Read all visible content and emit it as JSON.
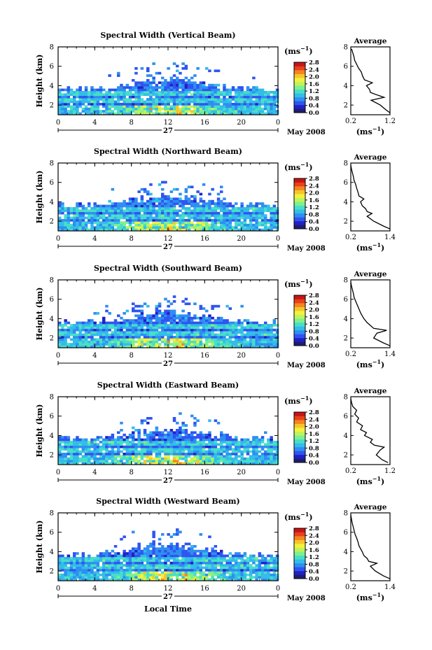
{
  "figure": {
    "bottom_xlabel": "Local Time",
    "ylabel": "Height (km)",
    "date_label": "May 2008",
    "day_label": "27",
    "colorbar_unit": "(ms",
    "colorbar_unit_exp": "−1",
    "colorbar_unit_close": ")",
    "average_title": "Average",
    "average_unit": "(ms",
    "average_unit_exp": "−1",
    "average_unit_close": ")",
    "colormap": [
      "#1e1e6e",
      "#2020c8",
      "#2f55ef",
      "#2f8ef2",
      "#33bde8",
      "#48dfc8",
      "#7ff08e",
      "#bff35c",
      "#f2f23c",
      "#f7c42b",
      "#f4841f",
      "#e8401a",
      "#c81414"
    ]
  },
  "chart_data": [
    {
      "type": "heatmap",
      "title": "Spectral Width (Vertical Beam)",
      "x_ticks": [
        "0",
        "4",
        "8",
        "12",
        "16",
        "20",
        "0"
      ],
      "x_range": [
        0,
        24
      ],
      "y_ticks": [
        "2",
        "4",
        "6",
        "8"
      ],
      "y_range": [
        1,
        8
      ],
      "colorbar_ticks": [
        "0.0",
        "0.4",
        "0.8",
        "1.2",
        "1.6",
        "2.0",
        "2.4",
        "2.8"
      ],
      "colorbar_range": [
        0.0,
        2.8
      ],
      "average": {
        "title": "Average",
        "x_ticks": [
          "0.2",
          "1.2"
        ],
        "x_range": [
          0.2,
          1.2
        ],
        "heights": [
          1.2,
          1.5,
          2.0,
          2.5,
          2.8,
          3.0,
          3.3,
          3.6,
          4.0,
          4.3,
          4.6,
          5.0,
          5.4,
          5.8,
          6.2,
          6.6,
          7.0,
          7.4,
          7.8
        ],
        "values": [
          1.2,
          1.1,
          0.95,
          0.72,
          1.05,
          0.9,
          0.7,
          0.68,
          0.6,
          0.75,
          0.55,
          0.5,
          0.47,
          0.4,
          0.35,
          0.3,
          0.28,
          0.25,
          0.22
        ]
      }
    },
    {
      "type": "heatmap",
      "title": "Spectral Width (Northward Beam)",
      "x_ticks": [
        "0",
        "4",
        "8",
        "12",
        "16",
        "20",
        "0"
      ],
      "x_range": [
        0,
        24
      ],
      "y_ticks": [
        "2",
        "4",
        "6",
        "8"
      ],
      "y_range": [
        1,
        8
      ],
      "colorbar_ticks": [
        "0.0",
        "0.4",
        "0.8",
        "1.2",
        "1.6",
        "2.0",
        "2.4",
        "2.8"
      ],
      "colorbar_range": [
        0.0,
        2.8
      ],
      "average": {
        "title": "Average",
        "x_ticks": [
          "0.2",
          "1.4"
        ],
        "x_range": [
          0.2,
          1.4
        ],
        "heights": [
          1.2,
          1.5,
          2.0,
          2.5,
          2.8,
          3.0,
          3.3,
          3.6,
          4.0,
          4.3,
          4.6,
          5.0,
          5.4,
          5.8,
          6.2,
          6.6,
          7.0,
          7.4,
          7.8
        ],
        "values": [
          1.4,
          1.2,
          0.9,
          0.7,
          0.85,
          0.7,
          0.65,
          0.55,
          0.5,
          0.6,
          0.45,
          0.42,
          0.38,
          0.35,
          0.3,
          0.28,
          0.25,
          0.22,
          0.2
        ]
      }
    },
    {
      "type": "heatmap",
      "title": "Spectral Width (Southward Beam)",
      "x_ticks": [
        "0",
        "4",
        "8",
        "12",
        "16",
        "20",
        "0"
      ],
      "x_range": [
        0,
        24
      ],
      "y_ticks": [
        "2",
        "4",
        "6",
        "8"
      ],
      "y_range": [
        1,
        8
      ],
      "colorbar_ticks": [
        "0.0",
        "0.4",
        "0.8",
        "1.2",
        "1.6",
        "2.0",
        "2.4",
        "2.8"
      ],
      "colorbar_range": [
        0.0,
        2.8
      ],
      "average": {
        "title": "Average",
        "x_ticks": [
          "0.2",
          "1.4"
        ],
        "x_range": [
          0.2,
          1.4
        ],
        "heights": [
          1.2,
          1.5,
          2.0,
          2.5,
          2.8,
          3.0,
          3.3,
          3.6,
          4.0,
          4.3,
          4.6,
          5.0,
          5.4,
          5.8,
          6.2,
          6.6,
          7.0,
          7.4,
          7.8
        ],
        "values": [
          1.4,
          1.2,
          0.9,
          1.0,
          1.3,
          0.9,
          0.8,
          0.7,
          0.6,
          0.55,
          0.5,
          0.45,
          0.4,
          0.35,
          0.3,
          0.28,
          0.25,
          0.22,
          0.2
        ]
      }
    },
    {
      "type": "heatmap",
      "title": "Spectral Width (Eastward Beam)",
      "x_ticks": [
        "0",
        "4",
        "8",
        "12",
        "16",
        "20",
        "0"
      ],
      "x_range": [
        0,
        24
      ],
      "y_ticks": [
        "2",
        "4",
        "6",
        "8"
      ],
      "y_range": [
        1,
        8
      ],
      "colorbar_ticks": [
        "0.0",
        "0.4",
        "0.8",
        "1.2",
        "1.6",
        "2.0",
        "2.4",
        "2.8"
      ],
      "colorbar_range": [
        0.0,
        2.8
      ],
      "average": {
        "title": "Average",
        "x_ticks": [
          "0.2",
          "1.2"
        ],
        "x_range": [
          0.2,
          1.2
        ],
        "heights": [
          1.2,
          1.5,
          2.0,
          2.5,
          2.8,
          3.0,
          3.3,
          3.6,
          4.0,
          4.3,
          4.6,
          5.0,
          5.4,
          5.8,
          6.2,
          6.6,
          7.0,
          7.4,
          7.8
        ],
        "values": [
          1.15,
          1.0,
          0.85,
          0.95,
          1.05,
          0.8,
          0.7,
          0.75,
          0.55,
          0.6,
          0.45,
          0.5,
          0.35,
          0.4,
          0.3,
          0.35,
          0.25,
          0.22,
          0.2
        ]
      }
    },
    {
      "type": "heatmap",
      "title": "Spectral Width (Westward Beam)",
      "x_ticks": [
        "0",
        "4",
        "8",
        "12",
        "16",
        "20",
        "0"
      ],
      "x_range": [
        0,
        24
      ],
      "y_ticks": [
        "2",
        "4",
        "6",
        "8"
      ],
      "y_range": [
        1,
        8
      ],
      "colorbar_ticks": [
        "0.0",
        "0.4",
        "0.8",
        "1.2",
        "1.6",
        "2.0",
        "2.4",
        "2.8"
      ],
      "colorbar_range": [
        0.0,
        2.8
      ],
      "average": {
        "title": "Average",
        "x_ticks": [
          "0.2",
          "1.4"
        ],
        "x_range": [
          0.2,
          1.4
        ],
        "heights": [
          1.2,
          1.5,
          2.0,
          2.5,
          2.8,
          3.0,
          3.3,
          3.6,
          4.0,
          4.3,
          4.6,
          5.0,
          5.4,
          5.8,
          6.2,
          6.6,
          7.0,
          7.4,
          7.8
        ],
        "values": [
          1.4,
          1.2,
          0.95,
          0.8,
          1.0,
          0.75,
          0.7,
          0.6,
          0.55,
          0.5,
          0.45,
          0.42,
          0.38,
          0.33,
          0.3,
          0.27,
          0.24,
          0.22,
          0.2
        ]
      }
    }
  ]
}
